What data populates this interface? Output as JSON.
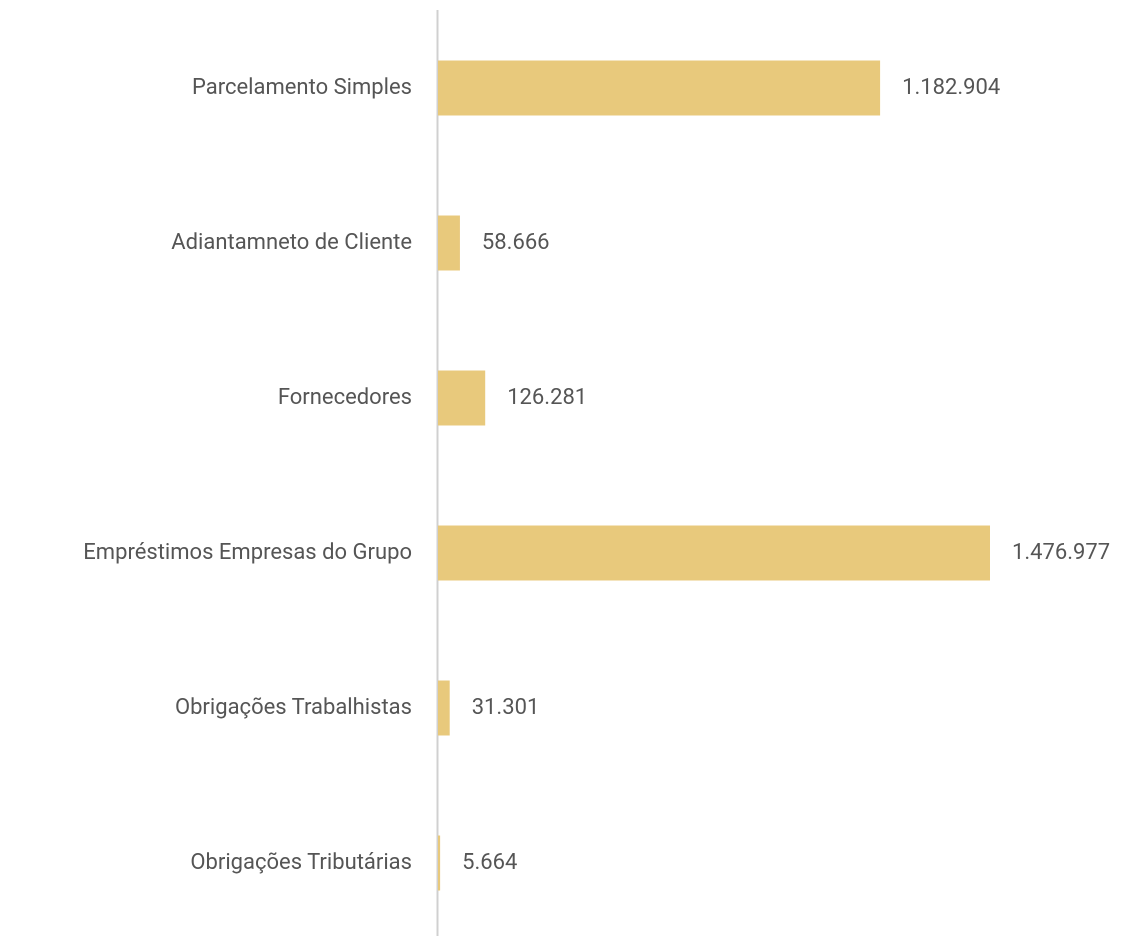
{
  "chart_data": {
    "type": "barh",
    "categories": [
      "Parcelamento Simples",
      "Adiantamneto de Cliente",
      "Fornecedores",
      "Empréstimos Empresas do Grupo",
      "Obrigações Trabalhistas",
      "Obrigações Tributárias"
    ],
    "values": [
      1182904,
      58666,
      126281,
      1476977,
      31301,
      5664
    ],
    "value_labels": [
      "1.182.904",
      "58.666",
      "126.281",
      "1.476.977",
      "31.301",
      "5.664"
    ],
    "color": "#e8c97c"
  }
}
